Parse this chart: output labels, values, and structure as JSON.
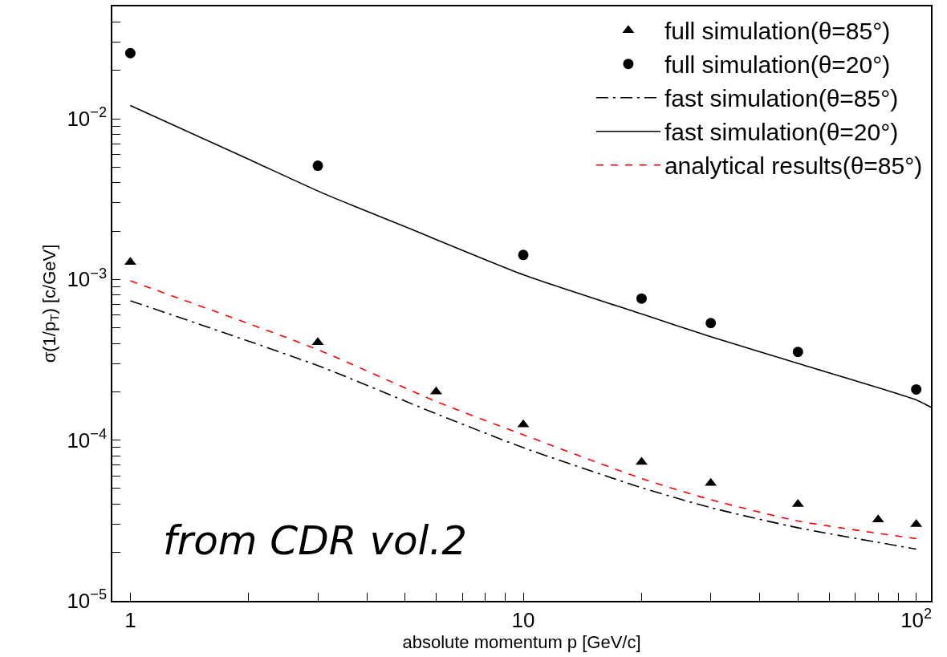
{
  "chart_data": {
    "type": "scatter",
    "xlabel": "absolute momentum p [GeV/c]",
    "ylabel": "σ(1/p$_{T}$) [c/GeV]",
    "log": "xy",
    "legend": "top right",
    "xlim": [
      0.9,
      109
    ],
    "ylim": [
      1e-05,
      0.05
    ],
    "xticks": [
      1,
      {
        "value": 2,
        "label": null
      },
      {
        "value": 3,
        "label": null
      },
      {
        "value": 4,
        "label": null
      },
      {
        "value": 5,
        "label": null
      },
      {
        "value": 6,
        "label": null
      },
      {
        "value": 7,
        "label": null
      },
      {
        "value": 8,
        "label": null
      },
      {
        "value": 9,
        "label": null
      },
      10,
      {
        "value": 20,
        "label": null
      },
      {
        "value": 30,
        "label": null
      },
      {
        "value": 40,
        "label": null
      },
      {
        "value": 50,
        "label": null
      },
      {
        "value": 60,
        "label": null
      },
      {
        "value": 70,
        "label": null
      },
      {
        "value": 80,
        "label": null
      },
      {
        "value": 90,
        "label": null
      },
      {
        "value": 100,
        "label": "10$^{2}$"
      }
    ],
    "yticks": [
      {
        "value": 1e-05,
        "label": "10$^{−5}$"
      },
      {
        "value": 2e-05,
        "label": null
      },
      {
        "value": 3e-05,
        "label": null
      },
      {
        "value": 4e-05,
        "label": null
      },
      {
        "value": 5e-05,
        "label": null
      },
      {
        "value": 6e-05,
        "label": null
      },
      {
        "value": 7e-05,
        "label": null
      },
      {
        "value": 8e-05,
        "label": null
      },
      {
        "value": 9e-05,
        "label": null
      },
      {
        "value": 0.0001,
        "label": "10$^{−4}$"
      },
      {
        "value": 0.0002,
        "label": null
      },
      {
        "value": 0.0003,
        "label": null
      },
      {
        "value": 0.0004,
        "label": null
      },
      {
        "value": 0.0005,
        "label": null
      },
      {
        "value": 0.0006,
        "label": null
      },
      {
        "value": 0.0007,
        "label": null
      },
      {
        "value": 0.0008,
        "label": null
      },
      {
        "value": 0.0009,
        "label": null
      },
      {
        "value": 0.001,
        "label": "10$^{−3}$"
      },
      {
        "value": 0.002,
        "label": null
      },
      {
        "value": 0.003,
        "label": null
      },
      {
        "value": 0.004,
        "label": null
      },
      {
        "value": 0.005,
        "label": null
      },
      {
        "value": 0.006,
        "label": null
      },
      {
        "value": 0.007,
        "label": null
      },
      {
        "value": 0.008,
        "label": null
      },
      {
        "value": 0.009,
        "label": null
      },
      {
        "value": 0.01,
        "label": "10$^{−2}$"
      },
      {
        "value": 0.02,
        "label": null
      },
      {
        "value": 0.03,
        "label": null
      },
      {
        "value": 0.04,
        "label": null
      }
    ],
    "series": [
      {
        "name": "full simulation(θ=85°)",
        "marker": "triangle",
        "color": "#000000",
        "x": [
          1,
          3,
          6,
          10,
          20,
          30,
          50,
          80,
          100
        ],
        "values": [
          0.00128,
          0.000406,
          0.0002,
          0.000125,
          7.3e-05,
          5.4e-05,
          4e-05,
          3.2e-05,
          3e-05
        ]
      },
      {
        "name": "full simulation(θ=20°)",
        "marker": "circle",
        "color": "#000000",
        "x": [
          1,
          3,
          10,
          20,
          30,
          50,
          100
        ],
        "values": [
          0.0256,
          0.0051,
          0.00142,
          0.00076,
          0.000535,
          0.000354,
          0.000207
        ]
      },
      {
        "name": "fast simulation(θ=85°)",
        "type": "line",
        "line_style": "dashdot",
        "color": "#000000",
        "x": [
          1,
          3,
          6,
          10,
          20,
          30,
          50,
          100
        ],
        "values": [
          0.000737,
          0.000291,
          0.000146,
          8.98e-05,
          5.06e-05,
          3.8e-05,
          2.85e-05,
          2.1e-05
        ]
      },
      {
        "name": "fast simulation(θ=20°)",
        "type": "line",
        "line_style": "solid",
        "color": "#000000",
        "x": [
          1,
          2,
          3.1,
          5,
          10,
          20,
          30,
          50,
          100,
          109
        ],
        "values": [
          0.0121,
          0.0056,
          0.00343,
          0.00213,
          0.00107,
          0.00061,
          0.00044,
          0.0003,
          0.000178,
          0.00016
        ]
      },
      {
        "name": "analytical results(θ=85°)",
        "type": "line",
        "line_style": "dashed",
        "color": "#ff0000",
        "x": [
          1,
          3,
          6,
          10,
          20,
          30,
          50,
          100
        ],
        "values": [
          0.00098,
          0.000366,
          0.000174,
          0.000108,
          5.77e-05,
          4.26e-05,
          3.14e-05,
          2.44e-05
        ]
      }
    ],
    "annotations": [
      "from CDR vol.2"
    ]
  }
}
